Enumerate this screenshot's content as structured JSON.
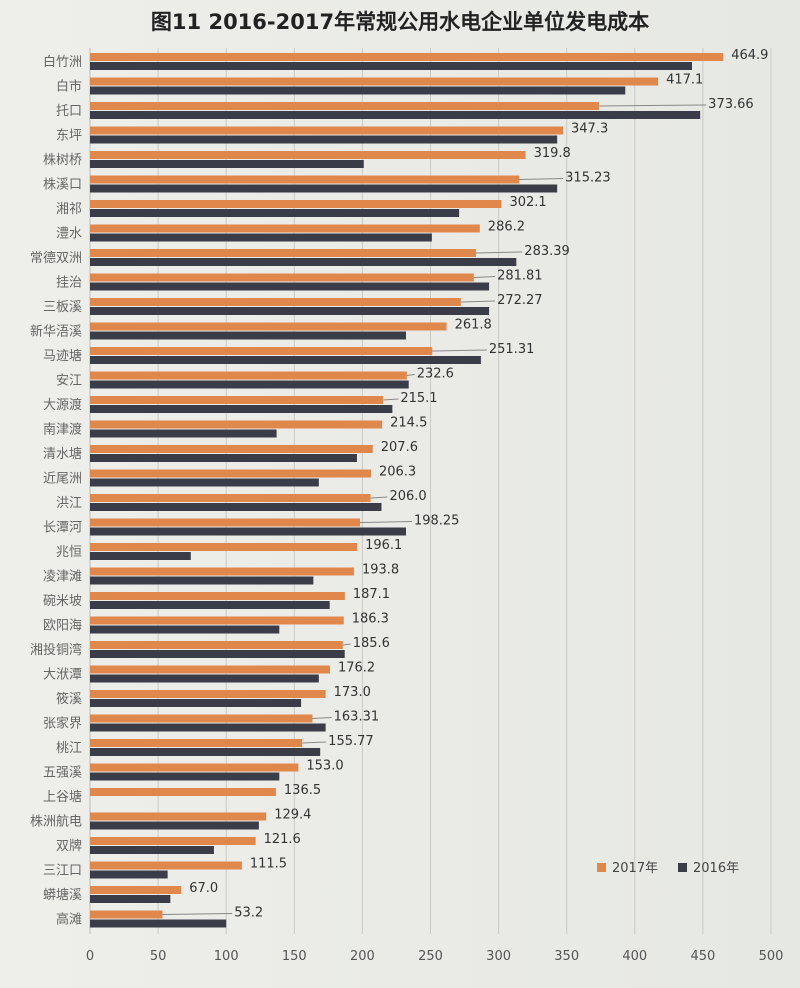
{
  "chart_data": {
    "type": "bar",
    "orientation": "horizontal",
    "title": "图11  2016-2017年常规公用水电企业单位发电成本",
    "categories": [
      "白竹洲",
      "白市",
      "托口",
      "东坪",
      "株树桥",
      "株溪口",
      "湘祁",
      "澧水",
      "常德双洲",
      "挂治",
      "三板溪",
      "新华浯溪",
      "马迹塘",
      "安江",
      "大源渡",
      "南津渡",
      "清水塘",
      "近尾洲",
      "洪江",
      "长潭河",
      "兆恒",
      "凌津滩",
      "碗米坡",
      "欧阳海",
      "湘投铜湾",
      "大洑潭",
      "筱溪",
      "张家界",
      "桃江",
      "五强溪",
      "上谷塘",
      "株洲航电",
      "双牌",
      "三江口",
      "蟒塘溪",
      "高滩"
    ],
    "series": [
      {
        "name": "2017年",
        "color": "#e0874c",
        "values": [
          464.9,
          417.1,
          373.66,
          347.3,
          319.8,
          315.23,
          302.1,
          286.2,
          283.39,
          281.81,
          272.27,
          261.8,
          251.31,
          232.6,
          215.1,
          214.5,
          207.6,
          206.3,
          206.0,
          198.25,
          196.1,
          193.8,
          187.1,
          186.3,
          185.6,
          176.2,
          173.0,
          163.31,
          155.77,
          153.0,
          136.5,
          129.4,
          121.6,
          111.5,
          67.0,
          53.2
        ]
      },
      {
        "name": "2016年",
        "color": "#3a3d48",
        "values": [
          442,
          393,
          448,
          343,
          201,
          343,
          271,
          251,
          313,
          293,
          293,
          232,
          287,
          234,
          222,
          137,
          196,
          168,
          214,
          232,
          74,
          164,
          176,
          139,
          187,
          168,
          155,
          173,
          169,
          139,
          0,
          124,
          91,
          57,
          59,
          100
        ]
      }
    ],
    "data_labels": [
      "464.9",
      "417.1",
      "373.66",
      "347.3",
      "319.8",
      "315.23",
      "302.1",
      "286.2",
      "283.39",
      "281.81",
      "272.27",
      "261.8",
      "251.31",
      "232.6",
      "215.1",
      "214.5",
      "207.6",
      "206.3",
      "206.0",
      "198.25",
      "196.1",
      "193.8",
      "187.1",
      "186.3",
      "185.6",
      "176.2",
      "173.0",
      "163.31",
      "155.77",
      "153.0",
      "136.5",
      "129.4",
      "121.6",
      "111.5",
      "67.0",
      "53.2"
    ],
    "xlim": [
      0,
      500
    ],
    "xticks": [
      "0",
      "50",
      "100",
      "150",
      "200",
      "250",
      "300",
      "350",
      "400",
      "450",
      "500"
    ],
    "grid": true,
    "legend_position": "bottom-right"
  }
}
